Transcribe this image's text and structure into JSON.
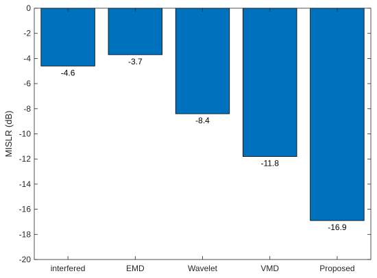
{
  "chart_data": {
    "type": "bar",
    "categories": [
      "interfered",
      "EMD",
      "Wavelet",
      "VMD",
      "Proposed"
    ],
    "values": [
      -4.6,
      -3.7,
      -8.4,
      -11.8,
      -16.9
    ],
    "data_labels": [
      "-4.6",
      "-3.7",
      "-8.4",
      "-11.8",
      "-16.9"
    ],
    "title": "",
    "xlabel": "",
    "ylabel": "MISLR (dB)",
    "ylim": [
      -20,
      0
    ],
    "yticks": [
      0,
      -2,
      -4,
      -6,
      -8,
      -10,
      -12,
      -14,
      -16,
      -18,
      -20
    ],
    "ytick_labels": [
      "0",
      "-2",
      "-4",
      "-6",
      "-8",
      "-10",
      "-12",
      "-14",
      "-16",
      "-18",
      "-20"
    ],
    "grid": false,
    "legend": "none",
    "colors": {
      "bar_fill": "#0072BD",
      "bar_stroke": "#000000",
      "axis": "#262626"
    }
  }
}
